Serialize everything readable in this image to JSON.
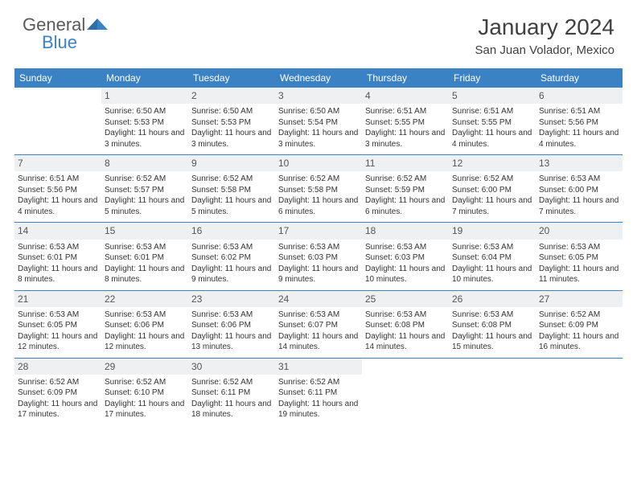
{
  "logo": {
    "text1": "General",
    "text2": "Blue"
  },
  "title": "January 2024",
  "location": "San Juan Volador, Mexico",
  "colors": {
    "header_bg": "#3b82c4",
    "header_text": "#ffffff",
    "daynum_bg": "#eef0f1",
    "row_border": "#3b82c4",
    "body_text": "#333333",
    "title_text": "#404040",
    "logo_gray": "#5a5a5a",
    "logo_blue": "#3b82c4"
  },
  "weekdays": [
    "Sunday",
    "Monday",
    "Tuesday",
    "Wednesday",
    "Thursday",
    "Friday",
    "Saturday"
  ],
  "weeks": [
    [
      {
        "day": "",
        "sunrise": "",
        "sunset": "",
        "daylight": ""
      },
      {
        "day": "1",
        "sunrise": "Sunrise: 6:50 AM",
        "sunset": "Sunset: 5:53 PM",
        "daylight": "Daylight: 11 hours and 3 minutes."
      },
      {
        "day": "2",
        "sunrise": "Sunrise: 6:50 AM",
        "sunset": "Sunset: 5:53 PM",
        "daylight": "Daylight: 11 hours and 3 minutes."
      },
      {
        "day": "3",
        "sunrise": "Sunrise: 6:50 AM",
        "sunset": "Sunset: 5:54 PM",
        "daylight": "Daylight: 11 hours and 3 minutes."
      },
      {
        "day": "4",
        "sunrise": "Sunrise: 6:51 AM",
        "sunset": "Sunset: 5:55 PM",
        "daylight": "Daylight: 11 hours and 3 minutes."
      },
      {
        "day": "5",
        "sunrise": "Sunrise: 6:51 AM",
        "sunset": "Sunset: 5:55 PM",
        "daylight": "Daylight: 11 hours and 4 minutes."
      },
      {
        "day": "6",
        "sunrise": "Sunrise: 6:51 AM",
        "sunset": "Sunset: 5:56 PM",
        "daylight": "Daylight: 11 hours and 4 minutes."
      }
    ],
    [
      {
        "day": "7",
        "sunrise": "Sunrise: 6:51 AM",
        "sunset": "Sunset: 5:56 PM",
        "daylight": "Daylight: 11 hours and 4 minutes."
      },
      {
        "day": "8",
        "sunrise": "Sunrise: 6:52 AM",
        "sunset": "Sunset: 5:57 PM",
        "daylight": "Daylight: 11 hours and 5 minutes."
      },
      {
        "day": "9",
        "sunrise": "Sunrise: 6:52 AM",
        "sunset": "Sunset: 5:58 PM",
        "daylight": "Daylight: 11 hours and 5 minutes."
      },
      {
        "day": "10",
        "sunrise": "Sunrise: 6:52 AM",
        "sunset": "Sunset: 5:58 PM",
        "daylight": "Daylight: 11 hours and 6 minutes."
      },
      {
        "day": "11",
        "sunrise": "Sunrise: 6:52 AM",
        "sunset": "Sunset: 5:59 PM",
        "daylight": "Daylight: 11 hours and 6 minutes."
      },
      {
        "day": "12",
        "sunrise": "Sunrise: 6:52 AM",
        "sunset": "Sunset: 6:00 PM",
        "daylight": "Daylight: 11 hours and 7 minutes."
      },
      {
        "day": "13",
        "sunrise": "Sunrise: 6:53 AM",
        "sunset": "Sunset: 6:00 PM",
        "daylight": "Daylight: 11 hours and 7 minutes."
      }
    ],
    [
      {
        "day": "14",
        "sunrise": "Sunrise: 6:53 AM",
        "sunset": "Sunset: 6:01 PM",
        "daylight": "Daylight: 11 hours and 8 minutes."
      },
      {
        "day": "15",
        "sunrise": "Sunrise: 6:53 AM",
        "sunset": "Sunset: 6:01 PM",
        "daylight": "Daylight: 11 hours and 8 minutes."
      },
      {
        "day": "16",
        "sunrise": "Sunrise: 6:53 AM",
        "sunset": "Sunset: 6:02 PM",
        "daylight": "Daylight: 11 hours and 9 minutes."
      },
      {
        "day": "17",
        "sunrise": "Sunrise: 6:53 AM",
        "sunset": "Sunset: 6:03 PM",
        "daylight": "Daylight: 11 hours and 9 minutes."
      },
      {
        "day": "18",
        "sunrise": "Sunrise: 6:53 AM",
        "sunset": "Sunset: 6:03 PM",
        "daylight": "Daylight: 11 hours and 10 minutes."
      },
      {
        "day": "19",
        "sunrise": "Sunrise: 6:53 AM",
        "sunset": "Sunset: 6:04 PM",
        "daylight": "Daylight: 11 hours and 10 minutes."
      },
      {
        "day": "20",
        "sunrise": "Sunrise: 6:53 AM",
        "sunset": "Sunset: 6:05 PM",
        "daylight": "Daylight: 11 hours and 11 minutes."
      }
    ],
    [
      {
        "day": "21",
        "sunrise": "Sunrise: 6:53 AM",
        "sunset": "Sunset: 6:05 PM",
        "daylight": "Daylight: 11 hours and 12 minutes."
      },
      {
        "day": "22",
        "sunrise": "Sunrise: 6:53 AM",
        "sunset": "Sunset: 6:06 PM",
        "daylight": "Daylight: 11 hours and 12 minutes."
      },
      {
        "day": "23",
        "sunrise": "Sunrise: 6:53 AM",
        "sunset": "Sunset: 6:06 PM",
        "daylight": "Daylight: 11 hours and 13 minutes."
      },
      {
        "day": "24",
        "sunrise": "Sunrise: 6:53 AM",
        "sunset": "Sunset: 6:07 PM",
        "daylight": "Daylight: 11 hours and 14 minutes."
      },
      {
        "day": "25",
        "sunrise": "Sunrise: 6:53 AM",
        "sunset": "Sunset: 6:08 PM",
        "daylight": "Daylight: 11 hours and 14 minutes."
      },
      {
        "day": "26",
        "sunrise": "Sunrise: 6:53 AM",
        "sunset": "Sunset: 6:08 PM",
        "daylight": "Daylight: 11 hours and 15 minutes."
      },
      {
        "day": "27",
        "sunrise": "Sunrise: 6:52 AM",
        "sunset": "Sunset: 6:09 PM",
        "daylight": "Daylight: 11 hours and 16 minutes."
      }
    ],
    [
      {
        "day": "28",
        "sunrise": "Sunrise: 6:52 AM",
        "sunset": "Sunset: 6:09 PM",
        "daylight": "Daylight: 11 hours and 17 minutes."
      },
      {
        "day": "29",
        "sunrise": "Sunrise: 6:52 AM",
        "sunset": "Sunset: 6:10 PM",
        "daylight": "Daylight: 11 hours and 17 minutes."
      },
      {
        "day": "30",
        "sunrise": "Sunrise: 6:52 AM",
        "sunset": "Sunset: 6:11 PM",
        "daylight": "Daylight: 11 hours and 18 minutes."
      },
      {
        "day": "31",
        "sunrise": "Sunrise: 6:52 AM",
        "sunset": "Sunset: 6:11 PM",
        "daylight": "Daylight: 11 hours and 19 minutes."
      },
      {
        "day": "",
        "sunrise": "",
        "sunset": "",
        "daylight": ""
      },
      {
        "day": "",
        "sunrise": "",
        "sunset": "",
        "daylight": ""
      },
      {
        "day": "",
        "sunrise": "",
        "sunset": "",
        "daylight": ""
      }
    ]
  ]
}
